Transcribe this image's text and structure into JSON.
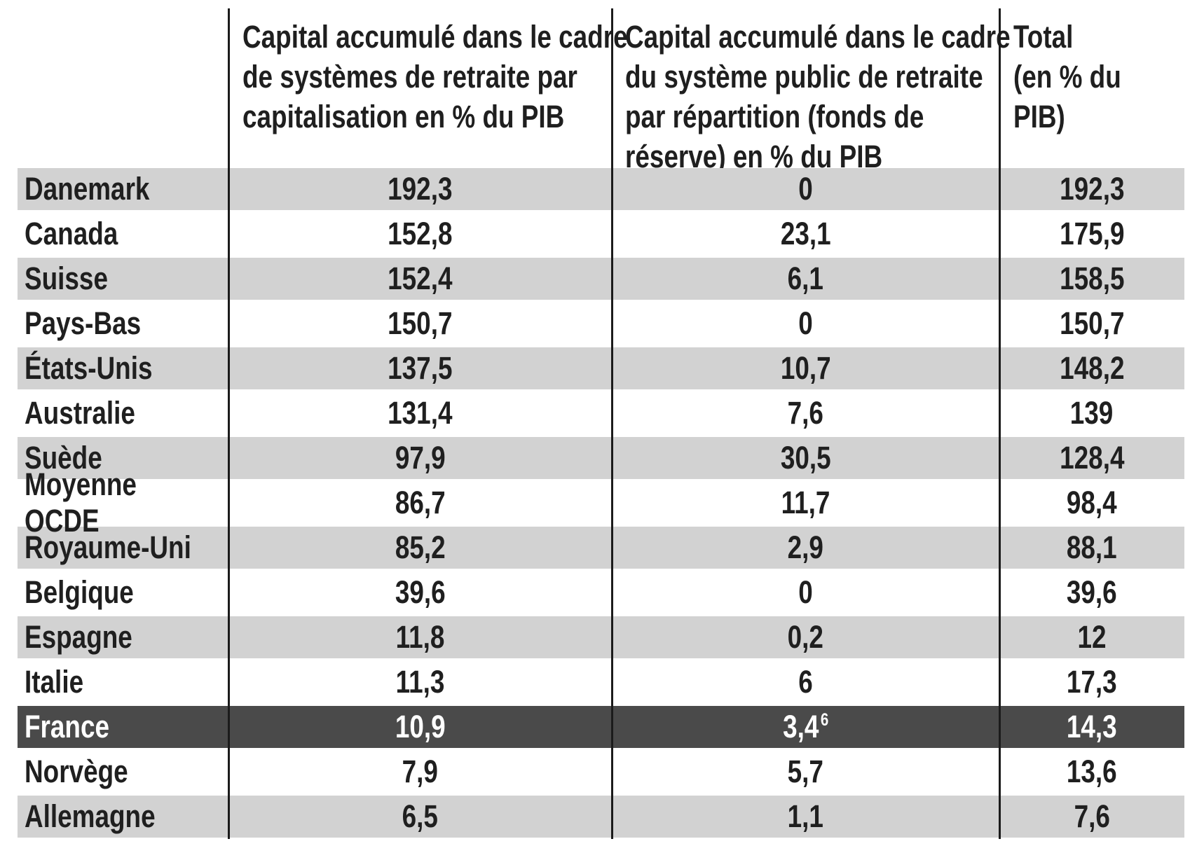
{
  "colors": {
    "row_light_gray": "#d2d2d2",
    "row_highlight_dark": "#4a4a4a",
    "divider_line": "#1b1b1b",
    "text": "#1f1f1f",
    "text_on_dark": "#ffffff"
  },
  "table": {
    "col1_header_lines": [
      "Capital accumulé dans le cadre",
      "de systèmes de retraite par",
      "capitalisation en % du PIB"
    ],
    "col2_header_lines": [
      "Capital accumulé dans le cadre",
      "du système public de retraite",
      "par répartition (fonds de",
      "réserve) en % du PIB"
    ],
    "col3_header_lines": [
      "Total",
      "(en % du PIB)"
    ],
    "rows": [
      {
        "country": "Danemark",
        "funded": "192,3",
        "public_reserve": "0",
        "total": "192,3"
      },
      {
        "country": "Canada",
        "funded": "152,8",
        "public_reserve": "23,1",
        "total": "175,9"
      },
      {
        "country": "Suisse",
        "funded": "152,4",
        "public_reserve": "6,1",
        "total": "158,5"
      },
      {
        "country": "Pays-Bas",
        "funded": "150,7",
        "public_reserve": "0",
        "total": "150,7"
      },
      {
        "country": "États-Unis",
        "funded": "137,5",
        "public_reserve": "10,7",
        "total": "148,2"
      },
      {
        "country": "Australie",
        "funded": "131,4",
        "public_reserve": "7,6",
        "total": "139"
      },
      {
        "country": "Suède",
        "funded": "97,9",
        "public_reserve": "30,5",
        "total": "128,4"
      },
      {
        "country": "Moyenne OCDE",
        "funded": "86,7",
        "public_reserve": "11,7",
        "total": "98,4"
      },
      {
        "country": "Royaume-Uni",
        "funded": "85,2",
        "public_reserve": "2,9",
        "total": "88,1"
      },
      {
        "country": "Belgique",
        "funded": "39,6",
        "public_reserve": "0",
        "total": "39,6"
      },
      {
        "country": "Espagne",
        "funded": "11,8",
        "public_reserve": "0,2",
        "total": "12"
      },
      {
        "country": "Italie",
        "funded": "11,3",
        "public_reserve": "6",
        "total": "17,3"
      },
      {
        "country": "France",
        "funded": "10,9",
        "public_reserve": "3,4",
        "public_reserve_superscript": "6",
        "total": "14,3",
        "highlighted": true
      },
      {
        "country": "Norvège",
        "funded": "7,9",
        "public_reserve": "5,7",
        "total": "13,6"
      },
      {
        "country": "Allemagne",
        "funded": "6,5",
        "public_reserve": "1,1",
        "total": "7,6"
      }
    ]
  },
  "chart_data": {
    "type": "table",
    "title": "",
    "columns": [
      "",
      "Capital accumulé dans le cadre de systèmes de retraite par capitalisation en % du PIB",
      "Capital accumulé dans le cadre du système public de retraite par répartition (fonds de réserve) en % du PIB",
      "Total (en % du PIB)"
    ],
    "rows": [
      [
        "Danemark",
        192.3,
        0,
        192.3
      ],
      [
        "Canada",
        152.8,
        23.1,
        175.9
      ],
      [
        "Suisse",
        152.4,
        6.1,
        158.5
      ],
      [
        "Pays-Bas",
        150.7,
        0,
        150.7
      ],
      [
        "États-Unis",
        137.5,
        10.7,
        148.2
      ],
      [
        "Australie",
        131.4,
        7.6,
        139
      ],
      [
        "Suède",
        97.9,
        30.5,
        128.4
      ],
      [
        "Moyenne OCDE",
        86.7,
        11.7,
        98.4
      ],
      [
        "Royaume-Uni",
        85.2,
        2.9,
        88.1
      ],
      [
        "Belgique",
        39.6,
        0,
        39.6
      ],
      [
        "Espagne",
        11.8,
        0.2,
        12
      ],
      [
        "Italie",
        11.3,
        6,
        17.3
      ],
      [
        "France",
        10.9,
        3.4,
        14.3
      ],
      [
        "Norvège",
        7.9,
        5.7,
        13.6
      ],
      [
        "Allemagne",
        6.5,
        1.1,
        7.6
      ]
    ],
    "highlighted_row": "France",
    "footnote_marker": {
      "row": "France",
      "column": 2,
      "marker": "6"
    },
    "layout": "alternating light-gray / white row shading, France row dark with white text, 3 vertical black column dividers, no horizontal grid lines"
  }
}
